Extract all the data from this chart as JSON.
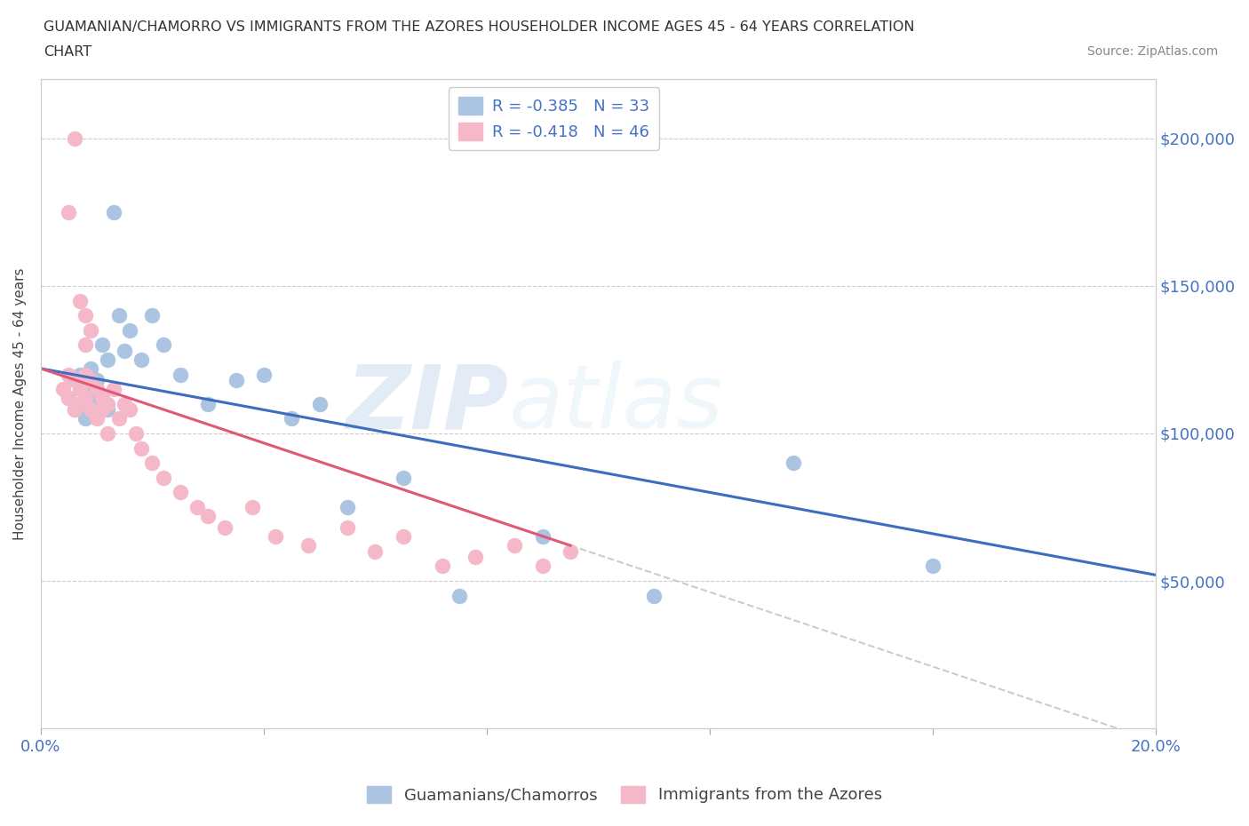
{
  "title_line1": "GUAMANIAN/CHAMORRO VS IMMIGRANTS FROM THE AZORES HOUSEHOLDER INCOME AGES 45 - 64 YEARS CORRELATION",
  "title_line2": "CHART",
  "source": "Source: ZipAtlas.com",
  "ylabel": "Householder Income Ages 45 - 64 years",
  "xlim": [
    0.0,
    0.2
  ],
  "ylim": [
    0,
    220000
  ],
  "xticks": [
    0.0,
    0.04,
    0.08,
    0.12,
    0.16,
    0.2
  ],
  "xticklabels": [
    "0.0%",
    "",
    "",
    "",
    "",
    "20.0%"
  ],
  "yticks": [
    0,
    50000,
    100000,
    150000,
    200000
  ],
  "yticklabels": [
    "",
    "$50,000",
    "$100,000",
    "$150,000",
    "$200,000"
  ],
  "blue_color": "#aac4e2",
  "pink_color": "#f5b8c8",
  "blue_line_color": "#3c6dbf",
  "pink_line_color": "#e05878",
  "axis_color": "#4472c4",
  "grid_color": "#cccccc",
  "R_blue": -0.385,
  "N_blue": 33,
  "R_pink": -0.418,
  "N_pink": 46,
  "blue_label": "Guamanians/Chamorros",
  "pink_label": "Immigrants from the Azores",
  "blue_scatter_x": [
    0.005,
    0.006,
    0.007,
    0.007,
    0.008,
    0.008,
    0.009,
    0.009,
    0.01,
    0.01,
    0.011,
    0.012,
    0.012,
    0.013,
    0.014,
    0.015,
    0.016,
    0.018,
    0.02,
    0.022,
    0.025,
    0.03,
    0.035,
    0.04,
    0.045,
    0.05,
    0.055,
    0.065,
    0.075,
    0.09,
    0.11,
    0.135,
    0.16
  ],
  "blue_scatter_y": [
    112000,
    108000,
    120000,
    110000,
    115000,
    105000,
    122000,
    108000,
    118000,
    112000,
    130000,
    125000,
    108000,
    175000,
    140000,
    128000,
    135000,
    125000,
    140000,
    130000,
    120000,
    110000,
    118000,
    120000,
    105000,
    110000,
    75000,
    85000,
    45000,
    65000,
    45000,
    90000,
    55000
  ],
  "pink_scatter_x": [
    0.004,
    0.005,
    0.005,
    0.006,
    0.006,
    0.007,
    0.007,
    0.008,
    0.008,
    0.009,
    0.009,
    0.01,
    0.01,
    0.011,
    0.011,
    0.012,
    0.012,
    0.013,
    0.014,
    0.015,
    0.016,
    0.017,
    0.018,
    0.02,
    0.022,
    0.025,
    0.028,
    0.03,
    0.033,
    0.038,
    0.042,
    0.048,
    0.055,
    0.06,
    0.065,
    0.072,
    0.078,
    0.085,
    0.09,
    0.095,
    0.005,
    0.006,
    0.007,
    0.008,
    0.008,
    0.009
  ],
  "pink_scatter_y": [
    115000,
    112000,
    120000,
    108000,
    118000,
    115000,
    110000,
    120000,
    112000,
    118000,
    108000,
    115000,
    105000,
    112000,
    108000,
    110000,
    100000,
    115000,
    105000,
    110000,
    108000,
    100000,
    95000,
    90000,
    85000,
    80000,
    75000,
    72000,
    68000,
    75000,
    65000,
    62000,
    68000,
    60000,
    65000,
    55000,
    58000,
    62000,
    55000,
    60000,
    175000,
    200000,
    145000,
    140000,
    130000,
    135000
  ],
  "blue_line_x0": 0.0,
  "blue_line_y0": 122000,
  "blue_line_x1": 0.2,
  "blue_line_y1": 52000,
  "pink_line_x0": 0.0,
  "pink_line_y0": 122000,
  "pink_line_x1": 0.095,
  "pink_line_y1": 62000
}
